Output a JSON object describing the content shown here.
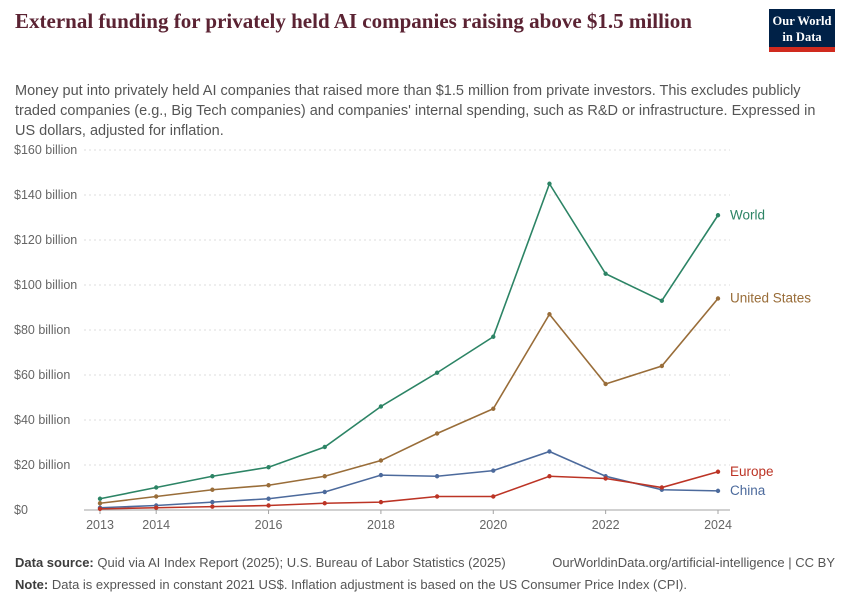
{
  "header": {
    "title": "External funding for privately held AI companies raising above $1.5 million",
    "subtitle": "Money put into privately held AI companies that raised more than $1.5 million from private investors. This excludes publicly traded companies (e.g., Big Tech companies) and companies' internal spending, such as R&D or infrastructure. Expressed in US dollars, adjusted for inflation.",
    "logo": {
      "line1": "Our World",
      "line2": "in Data"
    }
  },
  "colors": {
    "title": "#5b2333",
    "logo_navy": "#002147",
    "logo_red": "#d02a1e",
    "gridline": "#dcdcdc",
    "axis_zero_line": "#a3a3a3",
    "tick_text": "#666666"
  },
  "chart_data": {
    "type": "line",
    "title": "External funding for privately held AI companies raising above $1.5 million",
    "xlabel": "",
    "ylabel": "",
    "x": [
      2013,
      2014,
      2015,
      2016,
      2017,
      2018,
      2019,
      2020,
      2021,
      2022,
      2023,
      2024
    ],
    "x_ticks": [
      2013,
      2014,
      2016,
      2018,
      2020,
      2022,
      2024
    ],
    "ylim": [
      0,
      160
    ],
    "yticks": [
      0,
      20,
      40,
      60,
      80,
      100,
      120,
      140,
      160
    ],
    "ytick_labels": [
      "$0",
      "$20 billion",
      "$40 billion",
      "$60 billion",
      "$80 billion",
      "$100 billion",
      "$120 billion",
      "$140 billion",
      "$160 billion"
    ],
    "grid": "horizontal-dashed",
    "legend_position": "right-end-labels",
    "unit": "US$ billion, constant 2021 US$",
    "series": [
      {
        "name": "World",
        "color": "#2C8465",
        "values": [
          5,
          10,
          15,
          19,
          28,
          46,
          61,
          77,
          145,
          105,
          93,
          131
        ]
      },
      {
        "name": "United States",
        "color": "#996D39",
        "values": [
          3,
          6,
          9,
          11,
          15,
          22,
          34,
          45,
          87,
          56,
          64,
          94
        ]
      },
      {
        "name": "China",
        "color": "#4C6A9C",
        "values": [
          1,
          2,
          3.5,
          5,
          8,
          15.5,
          15,
          17.5,
          26,
          15,
          9,
          8.5
        ]
      },
      {
        "name": "Europe",
        "color": "#BC3425",
        "values": [
          0.5,
          1,
          1.5,
          2,
          3,
          3.5,
          6,
          6,
          15,
          14,
          10,
          17
        ]
      }
    ]
  },
  "footer": {
    "source_label": "Data source:",
    "source_text": "Quid via AI Index Report (2025); U.S. Bureau of Labor Statistics (2025)",
    "link": "OurWorldinData.org/artificial-intelligence | CC BY",
    "note_label": "Note:",
    "note_text": "Data is expressed in constant 2021 US$. Inflation adjustment is based on the US Consumer Price Index (CPI)."
  }
}
